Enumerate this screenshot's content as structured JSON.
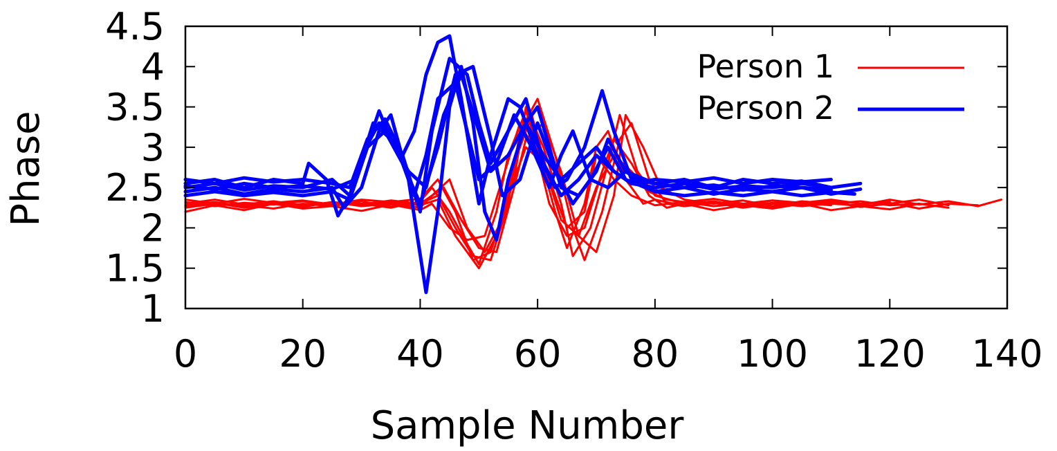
{
  "chart_data": {
    "type": "line",
    "xlabel": "Sample Number",
    "ylabel": "Phase",
    "xlim": [
      0,
      140
    ],
    "ylim": [
      1,
      4.5
    ],
    "xticks": [
      "0",
      "20",
      "40",
      "60",
      "80",
      "100",
      "120",
      "140"
    ],
    "yticks": [
      "1",
      "1.5",
      "2",
      "2.5",
      "3",
      "3.5",
      "4",
      "4.5"
    ],
    "grid": false,
    "legend_position": "top-right",
    "series": [
      {
        "name": "Person 1",
        "color": "#ff0000",
        "traces": [
          {
            "x": [
              0,
              5,
              10,
              15,
              20,
              25,
              30,
              35,
              40,
              42,
              45,
              48,
              50,
              53,
              55,
              58,
              60,
              63,
              65,
              68,
              70,
              72,
              75,
              78,
              80,
              85,
              90,
              95,
              100,
              105,
              110,
              115,
              120,
              125
            ],
            "y": [
              2.28,
              2.32,
              2.26,
              2.33,
              2.28,
              2.31,
              2.3,
              2.25,
              2.33,
              2.5,
              2.2,
              1.8,
              1.55,
              2.2,
              2.9,
              3.45,
              3.0,
              2.2,
              1.75,
              2.3,
              3.0,
              3.2,
              2.6,
              2.3,
              2.35,
              2.27,
              2.32,
              2.28,
              2.34,
              2.27,
              2.3,
              2.33,
              2.28,
              2.3
            ]
          },
          {
            "x": [
              0,
              5,
              10,
              15,
              20,
              25,
              30,
              35,
              40,
              43,
              46,
              48,
              50,
              53,
              56,
              58,
              61,
              64,
              66,
              69,
              72,
              74,
              77,
              80,
              85,
              90,
              95,
              100,
              105,
              110,
              115,
              120,
              125,
              130
            ],
            "y": [
              2.32,
              2.27,
              2.31,
              2.29,
              2.33,
              2.28,
              2.3,
              2.32,
              2.28,
              2.35,
              1.9,
              1.7,
              1.5,
              1.9,
              2.6,
              3.5,
              3.0,
              2.3,
              1.65,
              2.0,
              2.8,
              3.4,
              2.7,
              2.4,
              2.3,
              2.33,
              2.27,
              2.31,
              2.29,
              2.33,
              2.26,
              2.3,
              2.35,
              2.28
            ]
          },
          {
            "x": [
              0,
              5,
              10,
              15,
              20,
              25,
              30,
              35,
              40,
              43,
              46,
              49,
              52,
              55,
              57,
              60,
              63,
              66,
              68,
              71,
              74,
              76,
              79,
              82,
              85,
              90,
              95,
              100,
              105,
              110,
              115,
              120,
              125,
              130,
              135
            ],
            "y": [
              2.25,
              2.3,
              2.28,
              2.24,
              2.3,
              2.27,
              2.33,
              2.26,
              2.3,
              2.4,
              2.0,
              1.65,
              1.6,
              2.3,
              3.2,
              3.6,
              2.9,
              2.0,
              1.6,
              2.2,
              3.1,
              3.3,
              2.6,
              2.3,
              2.27,
              2.31,
              2.25,
              2.3,
              2.27,
              2.32,
              2.26,
              2.31,
              2.24,
              2.3,
              2.28
            ]
          },
          {
            "x": [
              0,
              5,
              10,
              15,
              20,
              25,
              30,
              35,
              40,
              44,
              47,
              50,
              53,
              56,
              58,
              61,
              64,
              67,
              70,
              73,
              75,
              78,
              81,
              85,
              90,
              95,
              100,
              105,
              110,
              115,
              120,
              125,
              130,
              135,
              139
            ],
            "y": [
              2.3,
              2.35,
              2.29,
              2.33,
              2.27,
              2.32,
              2.29,
              2.34,
              2.3,
              2.5,
              2.1,
              1.75,
              1.7,
              2.5,
              3.1,
              3.3,
              2.7,
              1.9,
              1.7,
              2.4,
              3.4,
              3.0,
              2.5,
              2.35,
              2.3,
              2.34,
              2.27,
              2.33,
              2.3,
              2.28,
              2.35,
              2.29,
              2.33,
              2.27,
              2.35
            ]
          },
          {
            "x": [
              0,
              5,
              10,
              15,
              20,
              25,
              30,
              35,
              40,
              42,
              45,
              48,
              51,
              54,
              57,
              60,
              62,
              65,
              68,
              71,
              73,
              76,
              79,
              82,
              85,
              90,
              95,
              100,
              105,
              110,
              115,
              120,
              125,
              130
            ],
            "y": [
              2.2,
              2.28,
              2.22,
              2.3,
              2.24,
              2.27,
              2.21,
              2.29,
              2.22,
              2.3,
              2.0,
              1.85,
              1.9,
              2.6,
              3.3,
              2.9,
              2.3,
              1.9,
              2.0,
              2.7,
              3.1,
              2.8,
              2.4,
              2.25,
              2.3,
              2.22,
              2.28,
              2.24,
              2.3,
              2.22,
              2.27,
              2.23,
              2.3,
              2.25
            ]
          },
          {
            "x": [
              0,
              5,
              10,
              15,
              20,
              25,
              30,
              35,
              40,
              43,
              46,
              49,
              52,
              55,
              58,
              61,
              64,
              67,
              70,
              73,
              76,
              79,
              82,
              85,
              90,
              95,
              100,
              105,
              110,
              115,
              120
            ],
            "y": [
              2.35,
              2.3,
              2.36,
              2.31,
              2.34,
              2.29,
              2.35,
              2.32,
              2.36,
              2.6,
              2.2,
              1.6,
              1.7,
              2.4,
              3.0,
              2.8,
              2.1,
              1.9,
              2.5,
              2.9,
              2.7,
              2.45,
              2.35,
              2.32,
              2.36,
              2.3,
              2.34,
              2.31,
              2.35,
              2.3,
              2.33
            ]
          },
          {
            "x": [
              0,
              5,
              10,
              15,
              20,
              25,
              30,
              35,
              40,
              42,
              45,
              48,
              51,
              54,
              56,
              59,
              62,
              65,
              68,
              70,
              73,
              76,
              80,
              85,
              90,
              95,
              100,
              105,
              110
            ],
            "y": [
              2.27,
              2.31,
              2.25,
              2.3,
              2.26,
              2.32,
              2.27,
              2.3,
              2.25,
              2.4,
              2.6,
              2.0,
              1.7,
              2.1,
              2.8,
              3.4,
              2.6,
              2.0,
              2.2,
              2.9,
              2.6,
              2.4,
              2.28,
              2.32,
              2.27,
              2.3,
              2.26,
              2.31,
              2.28
            ]
          }
        ]
      },
      {
        "name": "Person 2",
        "color": "#0000ff",
        "traces": [
          {
            "x": [
              0,
              5,
              10,
              15,
              20,
              21,
              24,
              26,
              28,
              30,
              33,
              35,
              37,
              39,
              41,
              43,
              45,
              47,
              50,
              52,
              55,
              57,
              60,
              63,
              65,
              68,
              71,
              73,
              76,
              80,
              85,
              90,
              95,
              100,
              105,
              110,
              115
            ],
            "y": [
              2.55,
              2.6,
              2.5,
              2.6,
              2.55,
              2.8,
              2.6,
              2.15,
              2.4,
              2.8,
              3.45,
              3.1,
              2.9,
              3.2,
              3.9,
              4.3,
              4.38,
              3.6,
              2.3,
              2.9,
              3.6,
              3.5,
              2.9,
              2.5,
              2.6,
              3.0,
              3.7,
              3.2,
              2.6,
              2.55,
              2.6,
              2.5,
              2.6,
              2.55,
              2.58,
              2.5,
              2.55
            ]
          },
          {
            "x": [
              0,
              5,
              10,
              15,
              20,
              25,
              27,
              30,
              33,
              35,
              38,
              41,
              43,
              45,
              47,
              49,
              51,
              53,
              55,
              58,
              60,
              62,
              64,
              67,
              70,
              72,
              75,
              80,
              85,
              90,
              95,
              100,
              105,
              110,
              115
            ],
            "y": [
              2.45,
              2.5,
              2.42,
              2.48,
              2.45,
              2.5,
              2.25,
              2.5,
              3.2,
              3.4,
              2.6,
              1.2,
              2.2,
              3.5,
              4.0,
              3.3,
              2.2,
              1.85,
              2.6,
              3.3,
              3.5,
              3.0,
              2.5,
              2.4,
              2.7,
              3.1,
              2.7,
              2.45,
              2.5,
              2.42,
              2.48,
              2.45,
              2.5,
              2.42,
              2.48
            ]
          },
          {
            "x": [
              0,
              5,
              10,
              15,
              20,
              25,
              28,
              30,
              33,
              36,
              39,
              41,
              43,
              46,
              48,
              50,
              53,
              56,
              59,
              62,
              64,
              66,
              69,
              72,
              75,
              80,
              85,
              90,
              95,
              100,
              105,
              110
            ],
            "y": [
              2.5,
              2.55,
              2.47,
              2.52,
              2.5,
              2.6,
              2.4,
              2.9,
              3.3,
              3.0,
              2.4,
              2.9,
              3.6,
              3.8,
              3.2,
              2.6,
              2.8,
              3.4,
              3.0,
              2.5,
              2.9,
              3.2,
              2.6,
              2.5,
              2.7,
              2.55,
              2.5,
              2.53,
              2.47,
              2.52,
              2.5,
              2.47
            ]
          },
          {
            "x": [
              0,
              5,
              10,
              15,
              20,
              25,
              28,
              31,
              34,
              37,
              40,
              42,
              45,
              48,
              50,
              52,
              55,
              58,
              61,
              64,
              67,
              70,
              73,
              76,
              80,
              85,
              90,
              95,
              100,
              105,
              110
            ],
            "y": [
              2.6,
              2.55,
              2.62,
              2.57,
              2.6,
              2.55,
              2.5,
              3.1,
              3.35,
              2.9,
              2.2,
              3.2,
              4.1,
              3.9,
              3.3,
              2.8,
              3.2,
              3.6,
              2.8,
              2.4,
              2.6,
              2.9,
              2.7,
              2.55,
              2.6,
              2.57,
              2.62,
              2.55,
              2.6,
              2.57,
              2.6
            ]
          },
          {
            "x": [
              0,
              5,
              10,
              15,
              20,
              25,
              28,
              31,
              34,
              37,
              40,
              43,
              46,
              49,
              52,
              54,
              57,
              60,
              63,
              66,
              69,
              72,
              75,
              80,
              85,
              90,
              95,
              100,
              105,
              110,
              114
            ],
            "y": [
              2.4,
              2.45,
              2.4,
              2.44,
              2.4,
              2.45,
              2.35,
              3.0,
              3.2,
              2.8,
              2.3,
              3.0,
              3.9,
              4.0,
              3.1,
              2.4,
              2.6,
              3.3,
              2.7,
              2.3,
              2.6,
              3.0,
              2.6,
              2.45,
              2.4,
              2.44,
              2.4,
              2.45,
              2.4,
              2.44,
              2.42
            ]
          },
          {
            "x": [
              0,
              5,
              10,
              15,
              20,
              25,
              29,
              32,
              35,
              38,
              41,
              44,
              47,
              50,
              52,
              55,
              58,
              61,
              64,
              67,
              70,
              73,
              76,
              80,
              85,
              90,
              95,
              100,
              105,
              110
            ],
            "y": [
              2.52,
              2.48,
              2.55,
              2.5,
              2.52,
              2.48,
              2.6,
              3.3,
              3.1,
              2.7,
              2.5,
              3.4,
              3.9,
              3.2,
              2.7,
              2.9,
              3.3,
              2.9,
              2.6,
              2.8,
              3.0,
              2.7,
              2.55,
              2.5,
              2.55,
              2.48,
              2.52,
              2.5,
              2.55,
              2.5
            ]
          }
        ]
      }
    ]
  }
}
